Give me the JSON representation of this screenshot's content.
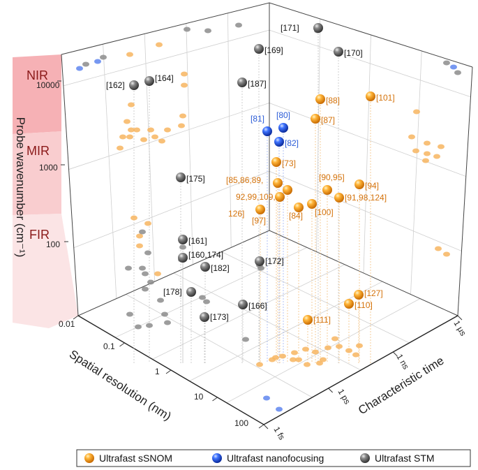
{
  "chart_data": {
    "type": "scatter3d",
    "title": "",
    "axes": {
      "z": {
        "label": "Probe wavenumber (cm⁻¹)",
        "ticks": [
          "100",
          "1000",
          "10000"
        ],
        "scale": "log"
      },
      "x": {
        "label": "Spatial resolution (nm)",
        "ticks": [
          "0.01",
          "0.1",
          "1",
          "10",
          "100"
        ],
        "scale": "log"
      },
      "y": {
        "label": "Characteristic time",
        "ticks": [
          "1 fs",
          "1 ps",
          "1 ns",
          "1 μs"
        ],
        "scale": "log"
      }
    },
    "bands": [
      {
        "name": "NIR",
        "color": "#f5a3a8"
      },
      {
        "name": "MIR",
        "color": "#f8c4c7"
      },
      {
        "name": "FIR",
        "color": "#fbe1e2"
      }
    ],
    "legend": [
      {
        "name": "Ultrafast sSNOM",
        "color": "#f0930f"
      },
      {
        "name": "Ultrafast nanofocusing",
        "color": "#2a5bd7"
      },
      {
        "name": "Ultrafast STM",
        "color": "#6b6b6b"
      }
    ],
    "series": [
      {
        "name": "Ultrafast sSNOM",
        "points": [
          {
            "label": "[88]",
            "label_side": "right"
          },
          {
            "label": "[101]",
            "label_side": "right"
          },
          {
            "label": "[87]",
            "label_side": "right"
          },
          {
            "label": "[73]",
            "label_side": "right"
          },
          {
            "label": "[85,86,89,",
            "label_side": "left"
          },
          {
            "label": "92,99,109,",
            "label_side": "left"
          },
          {
            "label": "126]",
            "label_side": "left"
          },
          {
            "label": "[90,95]",
            "label_side": "right"
          },
          {
            "label": "[94]",
            "label_side": "right"
          },
          {
            "label": "[91,98,124]",
            "label_side": "right"
          },
          {
            "label": "[84]",
            "label_side": "below"
          },
          {
            "label": "[100]",
            "label_side": "below"
          },
          {
            "label": "[97]",
            "label_side": "below"
          },
          {
            "label": "[127]",
            "label_side": "right"
          },
          {
            "label": "[110]",
            "label_side": "right"
          },
          {
            "label": "[111]",
            "label_side": "right"
          }
        ]
      },
      {
        "name": "Ultrafast nanofocusing",
        "points": [
          {
            "label": "[81]",
            "label_side": "above"
          },
          {
            "label": "[80]",
            "label_side": "above"
          },
          {
            "label": "[82]",
            "label_side": "right"
          }
        ]
      },
      {
        "name": "Ultrafast STM",
        "points": [
          {
            "label": "[171]",
            "label_side": "left"
          },
          {
            "label": "[169]",
            "label_side": "right"
          },
          {
            "label": "[170]",
            "label_side": "right"
          },
          {
            "label": "[162]",
            "label_side": "left"
          },
          {
            "label": "[164]",
            "label_side": "right"
          },
          {
            "label": "[187]",
            "label_side": "right"
          },
          {
            "label": "[175]",
            "label_side": "right"
          },
          {
            "label": "[161]",
            "label_side": "right"
          },
          {
            "label": "[160,174]",
            "label_side": "right"
          },
          {
            "label": "[182]",
            "label_side": "right"
          },
          {
            "label": "[172]",
            "label_side": "right"
          },
          {
            "label": "[178]",
            "label_side": "left"
          },
          {
            "label": "[166]",
            "label_side": "right"
          },
          {
            "label": "[173]",
            "label_side": "right"
          }
        ]
      }
    ]
  }
}
